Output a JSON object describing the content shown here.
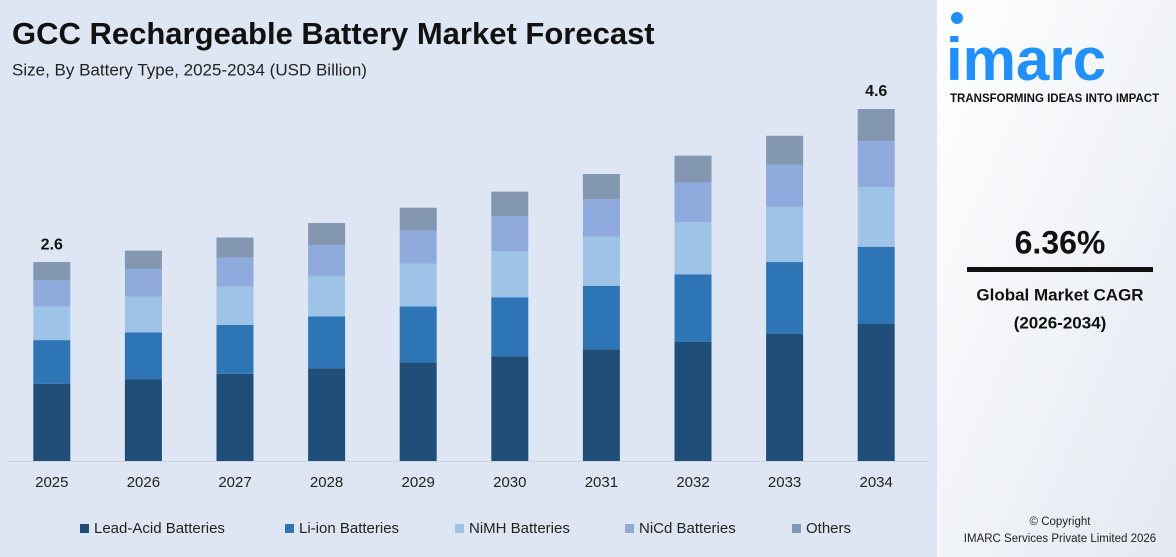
{
  "chart_data": {
    "type": "stacked-bar",
    "title": "GCC Rechargeable Battery Market Forecast",
    "subtitle": "Size, By Battery Type, 2025-2034 (USD Billion)",
    "categories": [
      "2025",
      "2026",
      "2027",
      "2028",
      "2029",
      "2030",
      "2031",
      "2032",
      "2033",
      "2034"
    ],
    "series": [
      {
        "name": "Lead-Acid Batteries",
        "color": "#1f4e79",
        "values": [
          1.01,
          1.07,
          1.14,
          1.21,
          1.29,
          1.37,
          1.46,
          1.56,
          1.66,
          1.79
        ]
      },
      {
        "name": "Li-ion Batteries",
        "color": "#2e75b6",
        "values": [
          0.57,
          0.61,
          0.64,
          0.68,
          0.73,
          0.77,
          0.83,
          0.88,
          0.94,
          1.01
        ]
      },
      {
        "name": "NiMH Batteries",
        "color": "#9dc3e6",
        "values": [
          0.44,
          0.47,
          0.5,
          0.53,
          0.56,
          0.6,
          0.64,
          0.68,
          0.72,
          0.78
        ]
      },
      {
        "name": "NiCd Batteries",
        "color": "#8faadc",
        "values": [
          0.34,
          0.36,
          0.38,
          0.4,
          0.43,
          0.46,
          0.49,
          0.52,
          0.55,
          0.6
        ]
      },
      {
        "name": "Others",
        "color": "#8497b0",
        "values": [
          0.24,
          0.24,
          0.26,
          0.29,
          0.3,
          0.32,
          0.33,
          0.35,
          0.38,
          0.42
        ]
      }
    ],
    "totals": [
      2.6,
      null,
      null,
      null,
      null,
      null,
      null,
      null,
      null,
      4.6
    ],
    "legend": "bottom"
  },
  "sidebar": {
    "logo": "imarc",
    "tagline": "TRANSFORMING IDEAS INTO IMPACT",
    "cagr": "6.36%",
    "cagr_label": "Global Market CAGR",
    "cagr_period": "(2026-2034)",
    "copyright": "© Copyright",
    "company": "IMARC Services Private Limited 2026"
  }
}
